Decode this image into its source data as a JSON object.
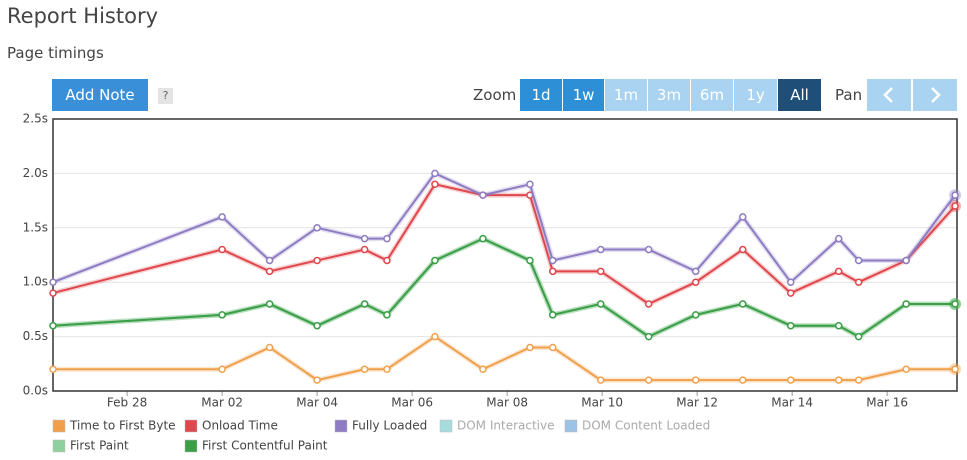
{
  "header": {
    "title": "Report History",
    "subtitle": "Page timings"
  },
  "toolbar": {
    "add_note": "Add Note",
    "help": "?",
    "zoom_label": "Zoom",
    "zoom_options": [
      "1d",
      "1w",
      "1m",
      "3m",
      "6m",
      "1y",
      "All"
    ],
    "pan_label": "Pan"
  },
  "chart_data": {
    "type": "line",
    "x": [
      -1.56,
      2,
      3,
      4,
      5,
      5.47,
      6.48,
      7.49,
      8.48,
      8.96,
      9.97,
      10.98,
      11.97,
      12.96,
      13.97,
      14.98,
      15.4,
      16.4,
      17.43
    ],
    "xlim": [
      -1.56,
      17.47
    ],
    "xticks": [
      {
        "value": 0,
        "label": "Feb 28"
      },
      {
        "value": 2,
        "label": "Mar 02"
      },
      {
        "value": 4,
        "label": "Mar 04"
      },
      {
        "value": 6,
        "label": "Mar 06"
      },
      {
        "value": 8,
        "label": "Mar 08"
      },
      {
        "value": 10,
        "label": "Mar 10"
      },
      {
        "value": 12,
        "label": "Mar 12"
      },
      {
        "value": 14,
        "label": "Mar 14"
      },
      {
        "value": 16,
        "label": "Mar 16"
      }
    ],
    "ylim": [
      0,
      2.5
    ],
    "yticks": [
      {
        "value": 0,
        "label": "0.0s"
      },
      {
        "value": 0.5,
        "label": "0.5s"
      },
      {
        "value": 1,
        "label": "1.0s"
      },
      {
        "value": 1.5,
        "label": "1.5s"
      },
      {
        "value": 2,
        "label": "2.0s"
      },
      {
        "value": 2.5,
        "label": "2.5s"
      }
    ],
    "grid": true,
    "series": [
      {
        "name": "Time to First Byte",
        "color": "#f0a04b",
        "values": [
          0.2,
          0.2,
          0.4,
          0.1,
          0.2,
          0.2,
          0.5,
          0.2,
          0.4,
          0.4,
          0.1,
          0.1,
          0.1,
          0.1,
          0.1,
          0.1,
          0.1,
          0.2,
          0.2
        ]
      },
      {
        "name": "Onload Time",
        "color": "#e0474c",
        "values": [
          0.9,
          1.3,
          1.1,
          1.2,
          1.3,
          1.2,
          1.9,
          1.8,
          1.8,
          1.1,
          1.1,
          0.8,
          1.0,
          1.3,
          0.9,
          1.1,
          1.0,
          1.2,
          1.7
        ]
      },
      {
        "name": "Fully Loaded",
        "color": "#8e7cc3",
        "values": [
          1.0,
          1.6,
          1.2,
          1.5,
          1.4,
          1.4,
          2.0,
          1.8,
          1.9,
          1.2,
          1.3,
          1.3,
          1.1,
          1.6,
          1.0,
          1.4,
          1.2,
          1.2,
          1.8
        ]
      },
      {
        "name": "DOM Interactive",
        "color": "#a8dcdc",
        "visible": false
      },
      {
        "name": "DOM Content Loaded",
        "color": "#9cc2e5",
        "visible": false
      },
      {
        "name": "First Paint",
        "color": "#8fd19e",
        "values": [
          0.6,
          0.7,
          0.8,
          0.6,
          0.8,
          0.7,
          1.2,
          1.4,
          1.2,
          0.7,
          0.8,
          0.5,
          0.7,
          0.8,
          0.6,
          0.6,
          0.5,
          0.8,
          0.8
        ]
      },
      {
        "name": "First Contentful Paint",
        "color": "#3c9f48",
        "values": [
          0.6,
          0.7,
          0.8,
          0.6,
          0.8,
          0.7,
          1.2,
          1.4,
          1.2,
          0.7,
          0.8,
          0.5,
          0.7,
          0.8,
          0.6,
          0.6,
          0.5,
          0.8,
          0.8
        ]
      }
    ]
  }
}
